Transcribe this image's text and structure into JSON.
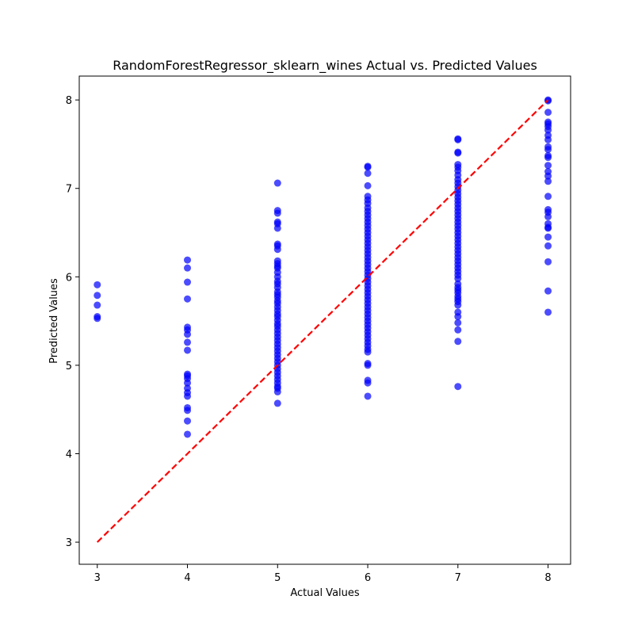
{
  "chart_data": {
    "type": "scatter",
    "title": "RandomForestRegressor_sklearn_wines Actual vs. Predicted Values",
    "xlabel": "Actual Values",
    "ylabel": "Predicted Values",
    "xlim": [
      2.8,
      8.25
    ],
    "ylim": [
      2.75,
      8.27
    ],
    "xticks": [
      3,
      4,
      5,
      6,
      7,
      8
    ],
    "yticks": [
      3,
      4,
      5,
      6,
      7,
      8
    ],
    "grid": false,
    "point_color": "#0000ff",
    "point_opacity": 0.7,
    "reference_line": {
      "from": [
        3,
        3
      ],
      "to": [
        8,
        8
      ],
      "color": "#ff0000",
      "style": "dashed"
    },
    "series": [
      {
        "x": 3,
        "y": [
          5.91,
          5.79,
          5.68,
          5.55,
          5.53
        ]
      },
      {
        "x": 4,
        "y": [
          6.19,
          6.1,
          5.94,
          5.75,
          5.43,
          5.4,
          5.35,
          5.26,
          5.17,
          4.9,
          4.88,
          4.85,
          4.8,
          4.74,
          4.69,
          4.65,
          4.52,
          4.49,
          4.37,
          4.22
        ]
      },
      {
        "x": 5,
        "y": [
          7.06,
          6.75,
          6.72,
          6.62,
          6.6,
          6.55,
          6.37,
          6.35,
          6.31,
          6.18,
          6.15,
          6.12,
          6.1,
          6.05,
          6.0,
          5.95,
          5.92,
          5.88,
          5.83,
          5.8,
          5.77,
          5.73,
          5.7,
          5.66,
          5.62,
          5.58,
          5.55,
          5.51,
          5.47,
          5.44,
          5.4,
          5.36,
          5.32,
          5.28,
          5.24,
          5.2,
          5.16,
          5.12,
          5.08,
          5.04,
          5.0,
          4.96,
          4.92,
          4.88,
          4.84,
          4.8,
          4.76,
          4.74,
          4.7,
          4.57
        ]
      },
      {
        "x": 6,
        "y": [
          7.25,
          7.24,
          7.17,
          7.03,
          6.91,
          6.87,
          6.83,
          6.78,
          6.74,
          6.7,
          6.66,
          6.62,
          6.58,
          6.54,
          6.5,
          6.46,
          6.42,
          6.38,
          6.34,
          6.3,
          6.26,
          6.22,
          6.18,
          6.14,
          6.1,
          6.06,
          6.02,
          5.98,
          5.94,
          5.9,
          5.86,
          5.82,
          5.78,
          5.74,
          5.7,
          5.66,
          5.62,
          5.58,
          5.54,
          5.5,
          5.46,
          5.42,
          5.38,
          5.34,
          5.3,
          5.26,
          5.22,
          5.18,
          5.15,
          5.02,
          5.0,
          4.83,
          4.8,
          4.65
        ]
      },
      {
        "x": 7,
        "y": [
          7.56,
          7.55,
          7.41,
          7.4,
          7.27,
          7.24,
          7.2,
          7.15,
          7.1,
          7.06,
          7.02,
          6.98,
          6.94,
          6.9,
          6.86,
          6.82,
          6.78,
          6.74,
          6.7,
          6.66,
          6.62,
          6.58,
          6.54,
          6.5,
          6.46,
          6.42,
          6.38,
          6.34,
          6.3,
          6.26,
          6.22,
          6.18,
          6.14,
          6.1,
          6.06,
          6.02,
          5.98,
          5.92,
          5.88,
          5.85,
          5.82,
          5.78,
          5.75,
          5.72,
          5.68,
          5.6,
          5.55,
          5.48,
          5.4,
          5.27,
          4.76
        ]
      },
      {
        "x": 8,
        "y": [
          8.0,
          7.99,
          7.86,
          7.75,
          7.73,
          7.7,
          7.66,
          7.6,
          7.55,
          7.47,
          7.44,
          7.37,
          7.35,
          7.26,
          7.19,
          7.14,
          7.08,
          6.91,
          6.76,
          6.73,
          6.68,
          6.6,
          6.56,
          6.55,
          6.45,
          6.35,
          6.17,
          5.84,
          5.6
        ]
      }
    ]
  }
}
